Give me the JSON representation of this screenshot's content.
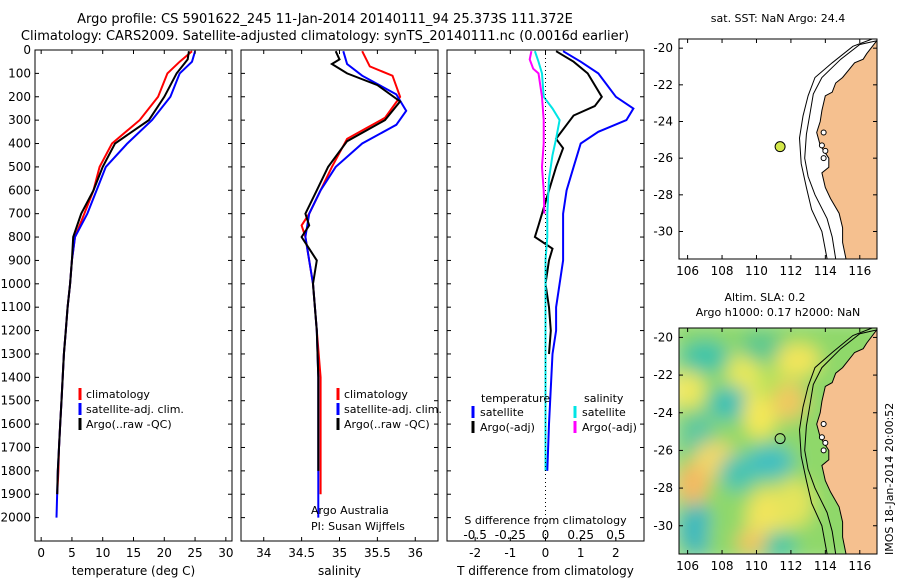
{
  "header": {
    "line1": "Argo profile: CS 5901622_245 11-Jan-2014 20140111_94 25.373S 111.372E",
    "line2": "Climatology: CARS2009. Satellite-adjusted climatology: synTS_20140111.nc (0.0016d earlier)"
  },
  "colors": {
    "climatology": "#ff0000",
    "satellite": "#0000ff",
    "argo": "#000000",
    "satellite_salinity": "#00e5e5",
    "argo_salinity": "#ff00ff",
    "land": "#f5c08f",
    "buoy": "#d4e84a"
  },
  "chart_data": [
    {
      "type": "line",
      "panel": "temperature",
      "xlabel": "temperature (deg C)",
      "ylabel": "",
      "xlim": [
        -1,
        31
      ],
      "ylim": [
        2100,
        0
      ],
      "y_inverted": true,
      "xticks": [
        0,
        5,
        10,
        15,
        20,
        25,
        30
      ],
      "yticks": [
        0,
        100,
        200,
        300,
        400,
        500,
        600,
        700,
        800,
        900,
        1000,
        1100,
        1200,
        1300,
        1400,
        1500,
        1600,
        1700,
        1800,
        1900,
        2000
      ],
      "legend": [
        "climatology",
        "satellite-adj. clim.",
        "Argo(..raw -QC)"
      ],
      "series": [
        {
          "name": "climatology",
          "color": "#ff0000",
          "points": [
            [
              24.5,
              5
            ],
            [
              22.5,
              50
            ],
            [
              20.5,
              100
            ],
            [
              19,
              200
            ],
            [
              16,
              300
            ],
            [
              11.5,
              400
            ],
            [
              9.5,
              500
            ],
            [
              8.5,
              600
            ],
            [
              7,
              700
            ],
            [
              5.5,
              800
            ],
            [
              5,
              900
            ],
            [
              4.7,
              1000
            ],
            [
              4.3,
              1100
            ],
            [
              4,
              1200
            ],
            [
              3.7,
              1300
            ],
            [
              3.5,
              1400
            ],
            [
              3.3,
              1500
            ],
            [
              3.1,
              1600
            ],
            [
              2.9,
              1700
            ],
            [
              2.8,
              1800
            ],
            [
              2.6,
              1900
            ]
          ]
        },
        {
          "name": "satellite-adj. clim.",
          "color": "#0000ff",
          "points": [
            [
              25,
              5
            ],
            [
              24.5,
              50
            ],
            [
              22.5,
              100
            ],
            [
              21,
              200
            ],
            [
              18,
              300
            ],
            [
              14,
              400
            ],
            [
              10.5,
              500
            ],
            [
              9,
              600
            ],
            [
              7.5,
              700
            ],
            [
              5.5,
              800
            ],
            [
              5,
              900
            ],
            [
              4.7,
              1000
            ],
            [
              4.3,
              1100
            ],
            [
              4,
              1200
            ],
            [
              3.7,
              1300
            ],
            [
              3.5,
              1400
            ],
            [
              3.3,
              1500
            ],
            [
              3.1,
              1600
            ],
            [
              2.9,
              1700
            ],
            [
              2.7,
              1800
            ],
            [
              2.5,
              2000
            ]
          ]
        },
        {
          "name": "Argo(..raw -QC)",
          "color": "#000000",
          "points": [
            [
              24,
              5
            ],
            [
              23.8,
              40
            ],
            [
              22,
              100
            ],
            [
              20,
              200
            ],
            [
              17.5,
              300
            ],
            [
              12,
              400
            ],
            [
              10,
              500
            ],
            [
              8.5,
              600
            ],
            [
              6.5,
              700
            ],
            [
              5.2,
              800
            ],
            [
              5,
              900
            ],
            [
              4.7,
              1000
            ],
            [
              4.3,
              1100
            ],
            [
              4,
              1200
            ],
            [
              3.7,
              1300
            ],
            [
              3.5,
              1400
            ],
            [
              3.3,
              1500
            ],
            [
              3.1,
              1600
            ],
            [
              2.9,
              1700
            ],
            [
              2.7,
              1800
            ],
            [
              2.6,
              1900
            ]
          ]
        }
      ]
    },
    {
      "type": "line",
      "panel": "salinity",
      "xlabel": "salinity",
      "ylabel": "",
      "xlim": [
        33.7,
        36.3
      ],
      "ylim": [
        2100,
        0
      ],
      "y_inverted": true,
      "xticks": [
        34,
        34.5,
        35,
        35.5,
        36
      ],
      "legend": [
        "climatology",
        "satellite-adj. clim.",
        "Argo(..raw -QC)"
      ],
      "annotation": [
        "Argo Australia",
        "PI: Susan Wijffels"
      ],
      "series": [
        {
          "name": "climatology",
          "color": "#ff0000",
          "points": [
            [
              35.3,
              5
            ],
            [
              35.4,
              70
            ],
            [
              35.7,
              110
            ],
            [
              35.8,
              200
            ],
            [
              35.6,
              290
            ],
            [
              35.1,
              380
            ],
            [
              34.9,
              500
            ],
            [
              34.75,
              600
            ],
            [
              34.6,
              700
            ],
            [
              34.5,
              750
            ],
            [
              34.55,
              800
            ],
            [
              34.6,
              900
            ],
            [
              34.65,
              1000
            ],
            [
              34.7,
              1200
            ],
            [
              34.75,
              1400
            ],
            [
              34.75,
              1600
            ],
            [
              34.75,
              1800
            ],
            [
              34.75,
              1900
            ]
          ]
        },
        {
          "name": "satellite-adj. clim.",
          "color": "#0000ff",
          "points": [
            [
              35.05,
              5
            ],
            [
              35.1,
              60
            ],
            [
              35.3,
              110
            ],
            [
              35.75,
              190
            ],
            [
              35.88,
              260
            ],
            [
              35.75,
              320
            ],
            [
              35.3,
              400
            ],
            [
              34.95,
              500
            ],
            [
              34.75,
              600
            ],
            [
              34.6,
              700
            ],
            [
              34.55,
              800
            ],
            [
              34.6,
              900
            ],
            [
              34.65,
              1000
            ],
            [
              34.7,
              1200
            ],
            [
              34.72,
              1400
            ],
            [
              34.72,
              1600
            ],
            [
              34.72,
              1800
            ],
            [
              34.72,
              2000
            ]
          ]
        },
        {
          "name": "Argo(..raw -QC)",
          "color": "#000000",
          "points": [
            [
              34.95,
              5
            ],
            [
              35,
              40
            ],
            [
              34.9,
              60
            ],
            [
              35.1,
              100
            ],
            [
              35.5,
              150
            ],
            [
              35.8,
              220
            ],
            [
              35.6,
              300
            ],
            [
              35.1,
              390
            ],
            [
              34.85,
              500
            ],
            [
              34.7,
              600
            ],
            [
              34.55,
              700
            ],
            [
              34.6,
              750
            ],
            [
              34.5,
              800
            ],
            [
              34.6,
              850
            ],
            [
              34.7,
              900
            ],
            [
              34.65,
              1000
            ],
            [
              34.7,
              1200
            ],
            [
              34.72,
              1400
            ],
            [
              34.72,
              1600
            ],
            [
              34.72,
              1800
            ]
          ]
        }
      ]
    },
    {
      "type": "line",
      "panel": "difference",
      "xlabel_top": "S difference from climatology",
      "xlabel": "T difference from climatology",
      "s_ticks": [
        "-0.5",
        "-0.25",
        "0",
        "0.25",
        "0.5"
      ],
      "t_ticks": [
        "-2",
        "-1",
        "0",
        "1",
        "2"
      ],
      "xlim": [
        -2.8,
        2.8
      ],
      "ylim": [
        2100,
        0
      ],
      "y_inverted": true,
      "legend": {
        "temperature_header": "temperature",
        "salinity_header": "salinity",
        "items": [
          {
            "label": "satellite",
            "color": "#0000ff"
          },
          {
            "label": "Argo(-adj)",
            "color": "#000000"
          },
          {
            "label": "satellite",
            "color": "#00e5e5"
          },
          {
            "label": "Argo(-adj)",
            "color": "#ff00ff"
          }
        ]
      },
      "series": [
        {
          "name": "T satellite",
          "color": "#0000ff",
          "points": [
            [
              0.5,
              5
            ],
            [
              1,
              50
            ],
            [
              1.5,
              100
            ],
            [
              2,
              200
            ],
            [
              2.5,
              250
            ],
            [
              2.3,
              300
            ],
            [
              1.5,
              350
            ],
            [
              1,
              400
            ],
            [
              0.8,
              500
            ],
            [
              0.6,
              600
            ],
            [
              0.5,
              700
            ],
            [
              0.5,
              800
            ],
            [
              0.5,
              900
            ],
            [
              0.4,
              1000
            ],
            [
              0.3,
              1100
            ],
            [
              0.3,
              1200
            ],
            [
              0.2,
              1300
            ],
            [
              0.1,
              1600
            ],
            [
              0.05,
              1800
            ]
          ]
        },
        {
          "name": "T Argo(-adj)",
          "color": "#000000",
          "points": [
            [
              0.3,
              5
            ],
            [
              0.8,
              50
            ],
            [
              1.2,
              100
            ],
            [
              1.6,
              200
            ],
            [
              1.4,
              240
            ],
            [
              0.8,
              280
            ],
            [
              0.6,
              320
            ],
            [
              0.3,
              380
            ],
            [
              0.5,
              420
            ],
            [
              0.3,
              500
            ],
            [
              0.1,
              600
            ],
            [
              -0.1,
              700
            ],
            [
              -0.2,
              750
            ],
            [
              -0.3,
              800
            ],
            [
              0.2,
              850
            ],
            [
              0.1,
              900
            ],
            [
              0,
              1000
            ],
            [
              0.1,
              1100
            ],
            [
              0.15,
              1200
            ],
            [
              0.1,
              1300
            ]
          ]
        },
        {
          "name": "S satellite",
          "color": "#00e5e5",
          "points": [
            [
              -0.3,
              5
            ],
            [
              -0.2,
              50
            ],
            [
              -0.1,
              100
            ],
            [
              -0.05,
              200
            ],
            [
              0.2,
              250
            ],
            [
              0.4,
              300
            ],
            [
              0.3,
              380
            ],
            [
              0.2,
              450
            ],
            [
              0.1,
              550
            ],
            [
              0.05,
              700
            ],
            [
              0.05,
              800
            ],
            [
              0,
              900
            ],
            [
              0,
              1100
            ],
            [
              0,
              1400
            ],
            [
              0,
              1600
            ],
            [
              0,
              1800
            ]
          ]
        },
        {
          "name": "S Argo(-adj)",
          "color": "#ff00ff",
          "points": [
            [
              -0.4,
              5
            ],
            [
              -0.45,
              40
            ],
            [
              -0.35,
              80
            ],
            [
              -0.2,
              100
            ],
            [
              -0.1,
              200
            ],
            [
              -0.05,
              300
            ],
            [
              -0.05,
              400
            ],
            [
              -0.1,
              500
            ],
            [
              -0.05,
              600
            ],
            [
              -0.03,
              700
            ]
          ]
        }
      ]
    },
    {
      "type": "scatter",
      "panel": "sst_map",
      "title": "sat. SST: NaN Argo: 24.4",
      "xlim": [
        105.5,
        117
      ],
      "ylim": [
        -31.5,
        -19.5
      ],
      "xticks": [
        106,
        108,
        110,
        112,
        114,
        116
      ],
      "yticks": [
        -20,
        -22,
        -24,
        -26,
        -28,
        -30
      ],
      "x": [
        111.372
      ],
      "y": [
        -25.373
      ]
    },
    {
      "type": "heatmap",
      "panel": "sla_map",
      "title": [
        "Altim. SLA: 0.2",
        "Argo h1000: 0.17 h2000: NaN"
      ],
      "side_label": "IMOS 18-Jan-2014 20:00:52",
      "xlim": [
        105.5,
        117
      ],
      "ylim": [
        -31.5,
        -19.5
      ],
      "xticks": [
        106,
        108,
        110,
        112,
        114,
        116
      ],
      "yticks": [
        -20,
        -22,
        -24,
        -26,
        -28,
        -30
      ],
      "x": [
        111.372
      ],
      "y": [
        -25.373
      ]
    }
  ]
}
